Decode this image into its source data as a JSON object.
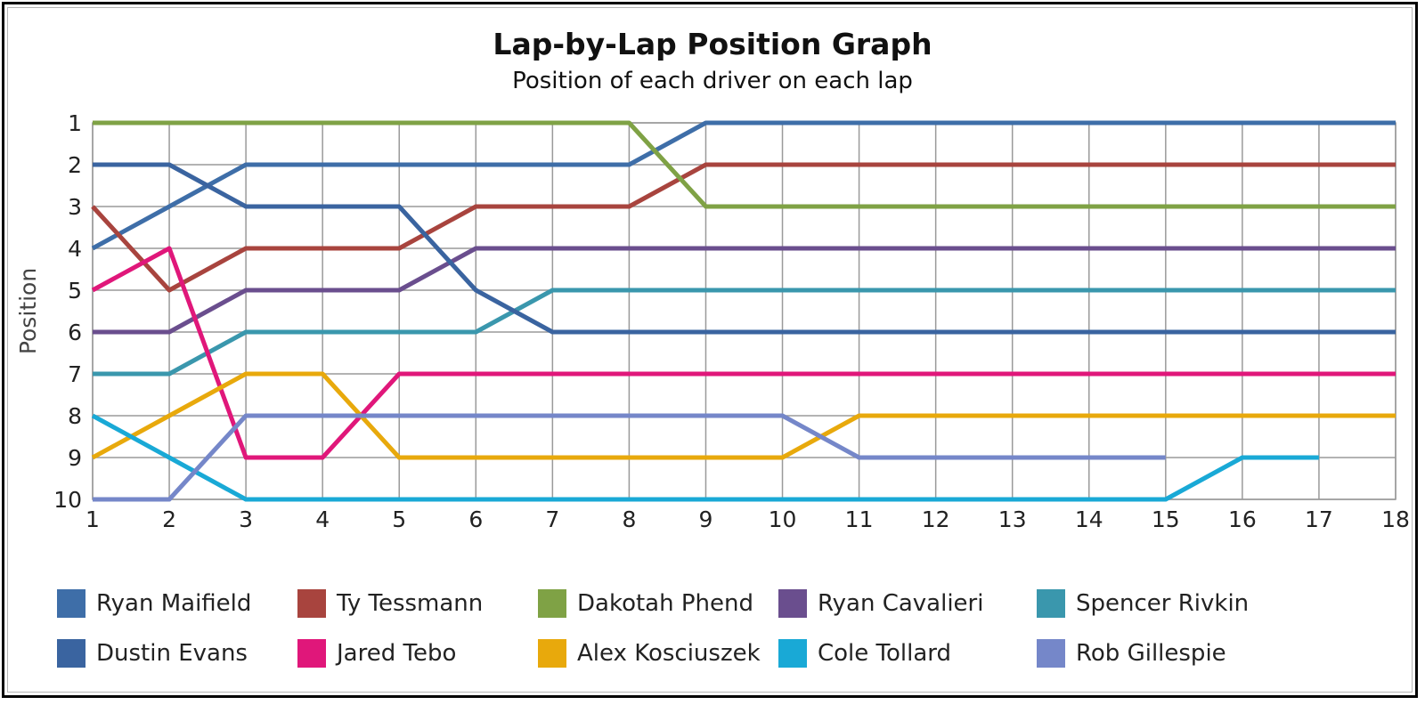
{
  "chart_data": {
    "type": "line",
    "title": "Lap-by-Lap Position Graph",
    "subtitle": "Position of each driver on each lap",
    "xlabel": "",
    "ylabel": "Position",
    "x": [
      1,
      2,
      3,
      4,
      5,
      6,
      7,
      8,
      9,
      10,
      11,
      12,
      13,
      14,
      15,
      16,
      17,
      18
    ],
    "xlim": [
      1,
      18
    ],
    "ylim": [
      1,
      10
    ],
    "y_inverted": true,
    "yticks": [
      1,
      2,
      3,
      4,
      5,
      6,
      7,
      8,
      9,
      10
    ],
    "grid": true,
    "legend_position": "bottom",
    "series": [
      {
        "name": "Ryan Maifield",
        "color": "#3e6ea8",
        "values": [
          4,
          3,
          2,
          2,
          2,
          2,
          2,
          2,
          1,
          1,
          1,
          1,
          1,
          1,
          1,
          1,
          1,
          1
        ]
      },
      {
        "name": "Ty Tessmann",
        "color": "#a8443e",
        "values": [
          3,
          5,
          4,
          4,
          4,
          3,
          3,
          3,
          2,
          2,
          2,
          2,
          2,
          2,
          2,
          2,
          2,
          2
        ]
      },
      {
        "name": "Dakotah Phend",
        "color": "#7fa245",
        "values": [
          1,
          1,
          1,
          1,
          1,
          1,
          1,
          1,
          3,
          3,
          3,
          3,
          3,
          3,
          3,
          3,
          3,
          3
        ]
      },
      {
        "name": "Ryan Cavalieri",
        "color": "#6a4e8e",
        "values": [
          6,
          6,
          5,
          5,
          5,
          4,
          4,
          4,
          4,
          4,
          4,
          4,
          4,
          4,
          4,
          4,
          4,
          4
        ]
      },
      {
        "name": "Spencer Rivkin",
        "color": "#3a97ad",
        "values": [
          7,
          7,
          6,
          6,
          6,
          6,
          5,
          5,
          5,
          5,
          5,
          5,
          5,
          5,
          5,
          5,
          5,
          5
        ]
      },
      {
        "name": "Dustin Evans",
        "color": "#3a64a0",
        "values": [
          2,
          2,
          3,
          3,
          3,
          5,
          6,
          6,
          6,
          6,
          6,
          6,
          6,
          6,
          6,
          6,
          6,
          6
        ]
      },
      {
        "name": "Jared Tebo",
        "color": "#e0177a",
        "values": [
          5,
          4,
          9,
          9,
          7,
          7,
          7,
          7,
          7,
          7,
          7,
          7,
          7,
          7,
          7,
          7,
          7,
          7
        ]
      },
      {
        "name": "Alex Kosciuszek",
        "color": "#e8a90c",
        "values": [
          9,
          8,
          7,
          7,
          9,
          9,
          9,
          9,
          9,
          9,
          8,
          8,
          8,
          8,
          8,
          8,
          8,
          8
        ]
      },
      {
        "name": "Cole Tollard",
        "color": "#19a9d6",
        "values": [
          8,
          9,
          10,
          10,
          10,
          10,
          10,
          10,
          10,
          10,
          10,
          10,
          10,
          10,
          10,
          9,
          9,
          null
        ]
      },
      {
        "name": "Rob Gillespie",
        "color": "#7587c9",
        "values": [
          10,
          10,
          8,
          8,
          8,
          8,
          8,
          8,
          8,
          8,
          9,
          9,
          9,
          9,
          9,
          null,
          null,
          null
        ]
      }
    ]
  }
}
